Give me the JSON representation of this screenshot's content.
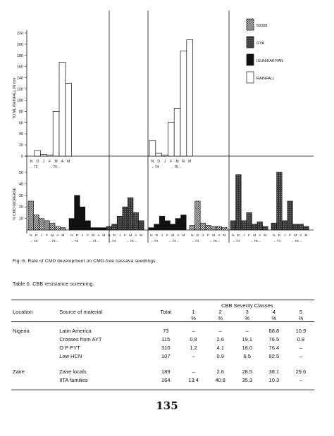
{
  "figure": {
    "y_upper_label": "TOTAL RAINFALL IN mm",
    "y_lower_label": "% CMD INCREASE",
    "y_upper_ticks": [
      "220",
      "200",
      "180",
      "160",
      "140",
      "120",
      "100",
      "80",
      "60",
      "40",
      "20",
      "0"
    ],
    "y_lower_ticks": [
      "50",
      "40",
      "30",
      "20",
      "10"
    ],
    "legend": [
      {
        "label": "58308",
        "pattern": "checker"
      },
      {
        "label": "OYA",
        "pattern": "dark-checker"
      },
      {
        "label": "ISUNIKAKIYAN",
        "pattern": "solid-black"
      },
      {
        "label": "RAINFALL",
        "pattern": "white"
      }
    ],
    "caption": "Fig. 6.   Rate of CMD development on CMD-free cassava seedlings."
  },
  "chart_data": {
    "type": "bar",
    "rainfall_panels": [
      {
        "months": [
          "N",
          "D",
          "J",
          "F",
          "M",
          "A",
          "M"
        ],
        "years": [
          "73",
          "74"
        ],
        "values": [
          0,
          10,
          3,
          2,
          80,
          168,
          130
        ]
      },
      {
        "months": [
          "N",
          "D",
          "J",
          "F",
          "M",
          "A",
          "M"
        ],
        "years": [
          "73",
          "74"
        ],
        "values": [
          0,
          0,
          0,
          0,
          0,
          0,
          0
        ]
      },
      {
        "months": [
          "N",
          "D",
          "J",
          "F",
          "M",
          "R",
          "M"
        ],
        "years": [
          "74",
          "75"
        ],
        "values": [
          28,
          5,
          2,
          60,
          85,
          188,
          208
        ]
      },
      {
        "months": [
          "N",
          "D",
          "J",
          "F",
          "M",
          "A",
          "M"
        ],
        "years": [
          "74",
          "75"
        ],
        "values": [
          0,
          0,
          0,
          0,
          0,
          0,
          0
        ]
      }
    ],
    "cmd_panels": [
      {
        "series": "58308",
        "months": [
          "N",
          "D",
          "J",
          "F",
          "M",
          "A",
          "M"
        ],
        "year_labels": [
          "73",
          "74"
        ],
        "values": [
          25,
          13,
          10,
          8,
          6,
          3,
          2
        ]
      },
      {
        "series": "ISUNIKAKIYAN",
        "months": [
          "N",
          "D",
          "J",
          "F",
          "M",
          "A",
          "M"
        ],
        "year_labels": [
          "73",
          "74"
        ],
        "values": [
          10,
          30,
          20,
          8,
          2,
          2,
          2
        ]
      },
      {
        "series": "OYA",
        "months": [
          "N",
          "D",
          "J",
          "F",
          "M",
          "A",
          "M"
        ],
        "year_labels": [
          "73",
          "74"
        ],
        "values": [
          3,
          5,
          12,
          20,
          28,
          15,
          8
        ]
      },
      {
        "series": "ISUNIKAKIYAN",
        "months": [
          "N",
          "D",
          "J",
          "F",
          "M",
          "A",
          "M"
        ],
        "year_labels": [
          "74",
          "74"
        ],
        "values": [
          2,
          5,
          12,
          8,
          5,
          10,
          13
        ]
      },
      {
        "series": "58308",
        "months": [
          "N",
          "D",
          "J",
          "F",
          "M",
          "A",
          "M"
        ],
        "year_labels": [
          "74",
          "75"
        ],
        "values": [
          4,
          25,
          6,
          4,
          3,
          3,
          2
        ]
      },
      {
        "series": "OYA",
        "months": [
          "N",
          "D",
          "J",
          "F",
          "M",
          "A",
          "M"
        ],
        "year_labels": [
          "74",
          "75"
        ],
        "values": [
          8,
          48,
          8,
          15,
          5,
          7,
          3
        ]
      },
      {
        "series": "OYA",
        "months": [
          "N",
          "D",
          "J",
          "F",
          "M",
          "A",
          "M"
        ],
        "year_labels": [
          "74",
          "75"
        ],
        "values": [
          6,
          50,
          8,
          25,
          5,
          5,
          3
        ]
      }
    ],
    "ylim_rain": [
      0,
      220
    ],
    "ylim_cmd": [
      0,
      50
    ],
    "grid": false
  },
  "table": {
    "title": "Table 6.    CBB resistance screening.",
    "group_header": "CBB Severity Classes",
    "headers": [
      "Location",
      "Source of material",
      "Total",
      "1",
      "2",
      "3",
      "4",
      "5"
    ],
    "units": [
      "%",
      "%",
      "%",
      "%",
      "%"
    ],
    "rows": [
      {
        "location": "Nigeria",
        "source": "Latin America",
        "total": "73",
        "c1": "–",
        "c2": "–",
        "c3": "–",
        "c4": "88.8",
        "c5": "10.9"
      },
      {
        "location": "",
        "source": "Crosses from AYT",
        "total": "115",
        "c1": "0.8",
        "c2": "2.6",
        "c3": "19.1",
        "c4": "76.5",
        "c5": "0.8"
      },
      {
        "location": "",
        "source": "O P PYT",
        "total": "310",
        "c1": "1.2",
        "c2": "4.1",
        "c3": "18.0",
        "c4": "76.4",
        "c5": "–"
      },
      {
        "location": "",
        "source": "Low HCN",
        "total": "107",
        "c1": "–",
        "c2": "0.9",
        "c3": "6.5",
        "c4": "92.5",
        "c5": "–"
      },
      {
        "location": "Zaire",
        "source": "Zaire locals",
        "total": "189",
        "c1": "–",
        "c2": "2.6",
        "c3": "28.5",
        "c4": "38.1",
        "c5": "29.6"
      },
      {
        "location": "",
        "source": "IITA families",
        "total": "164",
        "c1": "13.4",
        "c2": "40.8",
        "c3": "35.3",
        "c4": "10.3",
        "c5": "–"
      }
    ]
  },
  "page_number": "135"
}
